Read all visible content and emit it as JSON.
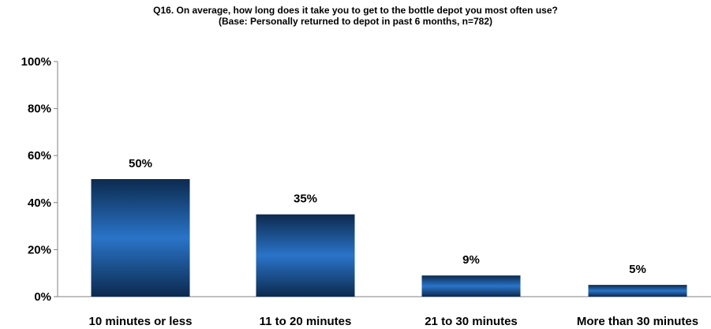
{
  "chart_data": {
    "type": "bar",
    "title": "Q16. On average, how long does it take you to get to the bottle depot you most often use?",
    "subtitle": "(Base: Personally returned to depot in past 6 months, n=782)",
    "xlabel": "",
    "ylabel": "",
    "categories": [
      "10 minutes or less",
      "11 to 20 minutes",
      "21 to 30 minutes",
      "More than 30 minutes"
    ],
    "values": [
      50,
      35,
      9,
      5
    ],
    "data_labels": [
      "50%",
      "35%",
      "9%",
      "5%"
    ],
    "ylim": [
      0,
      100
    ],
    "yticks": [
      0,
      20,
      40,
      60,
      80,
      100
    ],
    "ytick_labels": [
      "0%",
      "20%",
      "40%",
      "60%",
      "80%",
      "100%"
    ],
    "grid": false,
    "legend": "none",
    "colors": {
      "bar_center": "#2a74c8",
      "bar_edge": "#0c2a4e",
      "axis": "#808080",
      "text": "#000000"
    }
  }
}
